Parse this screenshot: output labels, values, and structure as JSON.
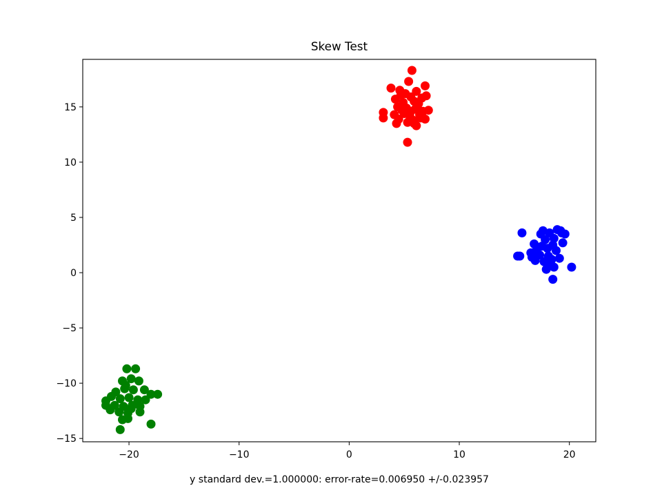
{
  "chart_data": {
    "type": "scatter",
    "title": "Skew Test",
    "xlabel": "y standard dev.=1.000000: error-rate=0.006950 +/-0.023957",
    "ylabel": "",
    "xlim": [
      -24.2,
      22.4
    ],
    "ylim": [
      -15.3,
      19.3
    ],
    "xticks": [
      -20,
      -10,
      0,
      10,
      20
    ],
    "yticks": [
      -15,
      -10,
      -5,
      0,
      5,
      10,
      15
    ],
    "xtick_labels": [
      "−20",
      "−10",
      "0",
      "10",
      "20"
    ],
    "ytick_labels": [
      "−15",
      "−10",
      "−5",
      "0",
      "5",
      "10",
      "15"
    ],
    "grid": false,
    "legend": "none",
    "series": [
      {
        "color": "#ff0000",
        "points": [
          [
            5.7,
            18.3
          ],
          [
            5.4,
            17.3
          ],
          [
            3.8,
            16.7
          ],
          [
            4.6,
            16.5
          ],
          [
            6.9,
            16.9
          ],
          [
            5.1,
            16.2
          ],
          [
            6.1,
            16.4
          ],
          [
            4.2,
            15.7
          ],
          [
            5.6,
            15.9
          ],
          [
            6.6,
            15.8
          ],
          [
            7.0,
            16.0
          ],
          [
            4.9,
            15.4
          ],
          [
            5.9,
            15.5
          ],
          [
            6.3,
            15.3
          ],
          [
            4.4,
            15.0
          ],
          [
            5.2,
            14.9
          ],
          [
            6.0,
            14.8
          ],
          [
            7.2,
            14.7
          ],
          [
            6.7,
            14.6
          ],
          [
            3.1,
            14.5
          ],
          [
            4.1,
            14.3
          ],
          [
            5.0,
            14.4
          ],
          [
            5.5,
            14.2
          ],
          [
            6.4,
            14.3
          ],
          [
            3.1,
            14.0
          ],
          [
            4.5,
            13.9
          ],
          [
            5.8,
            13.8
          ],
          [
            6.9,
            13.9
          ],
          [
            4.3,
            13.5
          ],
          [
            5.3,
            13.6
          ],
          [
            6.1,
            13.3
          ],
          [
            5.3,
            11.8
          ],
          [
            4.8,
            14.7
          ],
          [
            5.6,
            14.6
          ],
          [
            6.2,
            15.1
          ],
          [
            4.7,
            16.1
          ],
          [
            5.9,
            13.5
          ],
          [
            6.5,
            14.0
          ]
        ]
      },
      {
        "color": "#0000ff",
        "points": [
          [
            18.9,
            3.9
          ],
          [
            19.2,
            3.8
          ],
          [
            19.6,
            3.5
          ],
          [
            15.7,
            3.6
          ],
          [
            17.4,
            3.5
          ],
          [
            18.2,
            3.6
          ],
          [
            16.8,
            2.6
          ],
          [
            17.8,
            3.0
          ],
          [
            18.6,
            3.1
          ],
          [
            19.4,
            2.7
          ],
          [
            17.0,
            2.0
          ],
          [
            18.0,
            2.2
          ],
          [
            18.8,
            2.0
          ],
          [
            15.3,
            1.5
          ],
          [
            15.5,
            1.5
          ],
          [
            16.5,
            1.8
          ],
          [
            17.3,
            1.6
          ],
          [
            18.1,
            1.5
          ],
          [
            19.1,
            1.3
          ],
          [
            16.9,
            1.1
          ],
          [
            17.7,
            1.0
          ],
          [
            18.3,
            0.8
          ],
          [
            17.9,
            0.3
          ],
          [
            18.6,
            0.5
          ],
          [
            20.2,
            0.5
          ],
          [
            18.5,
            -0.6
          ],
          [
            17.5,
            2.4
          ],
          [
            18.5,
            2.5
          ],
          [
            16.6,
            1.4
          ],
          [
            19.3,
            3.6
          ],
          [
            17.6,
            3.8
          ],
          [
            18.4,
            1.2
          ]
        ]
      },
      {
        "color": "#008000",
        "points": [
          [
            -20.2,
            -8.7
          ],
          [
            -19.4,
            -8.7
          ],
          [
            -20.6,
            -9.8
          ],
          [
            -19.8,
            -9.6
          ],
          [
            -19.1,
            -9.8
          ],
          [
            -21.2,
            -10.8
          ],
          [
            -20.4,
            -10.5
          ],
          [
            -19.6,
            -10.6
          ],
          [
            -18.6,
            -10.6
          ],
          [
            -18.0,
            -11.0
          ],
          [
            -17.4,
            -11.0
          ],
          [
            -21.6,
            -11.2
          ],
          [
            -20.8,
            -11.4
          ],
          [
            -20.0,
            -11.3
          ],
          [
            -19.2,
            -11.5
          ],
          [
            -18.5,
            -11.5
          ],
          [
            -22.1,
            -11.6
          ],
          [
            -22.1,
            -12.0
          ],
          [
            -21.3,
            -12.0
          ],
          [
            -20.5,
            -12.1
          ],
          [
            -19.7,
            -12.0
          ],
          [
            -19.0,
            -12.1
          ],
          [
            -21.7,
            -12.4
          ],
          [
            -20.9,
            -12.6
          ],
          [
            -20.1,
            -12.7
          ],
          [
            -19.0,
            -12.6
          ],
          [
            -20.6,
            -13.3
          ],
          [
            -20.1,
            -13.2
          ],
          [
            -18.0,
            -13.7
          ],
          [
            -20.8,
            -14.2
          ],
          [
            -20.3,
            -10.2
          ],
          [
            -19.8,
            -12.3
          ]
        ]
      }
    ]
  }
}
